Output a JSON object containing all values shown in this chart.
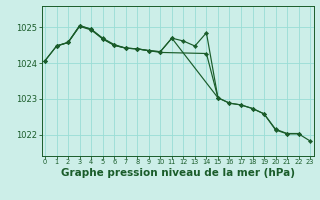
{
  "background_color": "#cceee8",
  "grid_color": "#99ddd5",
  "line_color": "#1a5c2a",
  "xlabel": "Graphe pression niveau de la mer (hPa)",
  "xlabel_fontsize": 7.5,
  "ylabel_ticks": [
    1022,
    1023,
    1024,
    1025
  ],
  "x_ticks": [
    0,
    1,
    2,
    3,
    4,
    5,
    6,
    7,
    8,
    9,
    10,
    11,
    12,
    13,
    14,
    15,
    16,
    17,
    18,
    19,
    20,
    21,
    22,
    23
  ],
  "ylim": [
    1021.4,
    1025.6
  ],
  "xlim": [
    -0.3,
    23.3
  ],
  "line1_x": [
    0,
    1,
    2,
    3,
    4,
    5,
    6,
    7,
    8,
    9,
    10,
    11,
    15,
    16,
    17,
    18,
    19,
    20,
    21,
    22,
    23
  ],
  "line1_y": [
    1024.07,
    1024.48,
    1024.58,
    1025.03,
    1024.93,
    1024.68,
    1024.5,
    1024.42,
    1024.4,
    1024.35,
    1024.32,
    1024.7,
    1023.03,
    1022.88,
    1022.83,
    1022.73,
    1022.58,
    1022.13,
    1022.02,
    1022.02,
    1021.82
  ],
  "line2_x": [
    1,
    2,
    3,
    4,
    5,
    6,
    7,
    8,
    9,
    10,
    14,
    15,
    16,
    17,
    18,
    19,
    20,
    21,
    22
  ],
  "line2_y": [
    1024.48,
    1024.58,
    1025.05,
    1024.95,
    1024.7,
    1024.52,
    1024.42,
    1024.4,
    1024.35,
    1024.3,
    1024.27,
    1023.03,
    1022.88,
    1022.83,
    1022.73,
    1022.58,
    1022.15,
    1022.03,
    1022.03
  ],
  "line3_x": [
    0,
    1,
    2,
    3,
    4,
    5,
    6,
    7,
    8,
    9,
    10,
    11,
    12,
    13,
    14,
    15
  ],
  "line3_y": [
    1024.07,
    1024.48,
    1024.58,
    1025.05,
    1024.95,
    1024.68,
    1024.5,
    1024.42,
    1024.4,
    1024.35,
    1024.32,
    1024.7,
    1024.62,
    1024.48,
    1024.85,
    1023.03
  ]
}
